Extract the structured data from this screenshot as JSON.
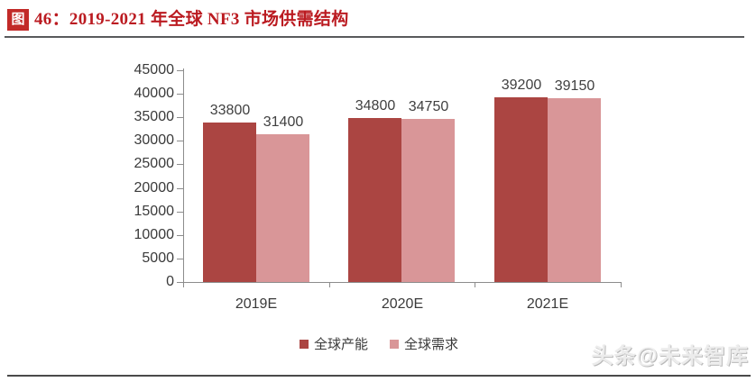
{
  "header": {
    "badge": "图",
    "title": "46：2019-2021 年全球 NF3 市场供需结构",
    "accent_color": "#bb1b21",
    "badge_color": "#c22a28"
  },
  "chart_data": {
    "type": "bar",
    "title": "2019-2021 年全球 NF3 市场供需结构",
    "categories": [
      "2019E",
      "2020E",
      "2021E"
    ],
    "series": [
      {
        "name": "全球产能",
        "color": "#ab4542",
        "values": [
          33800,
          34800,
          39200
        ]
      },
      {
        "name": "全球需求",
        "color": "#d99698",
        "values": [
          31400,
          34750,
          39150
        ]
      }
    ],
    "ylim": [
      0,
      45000
    ],
    "ytick_step": 5000,
    "yticks": [
      0,
      5000,
      10000,
      15000,
      20000,
      25000,
      30000,
      35000,
      40000,
      45000
    ],
    "grid": false,
    "data_labels": true,
    "legend_position": "bottom",
    "axis_color": "#8c8c8c",
    "label_color": "#404040"
  },
  "watermark": "头条@未来智库"
}
